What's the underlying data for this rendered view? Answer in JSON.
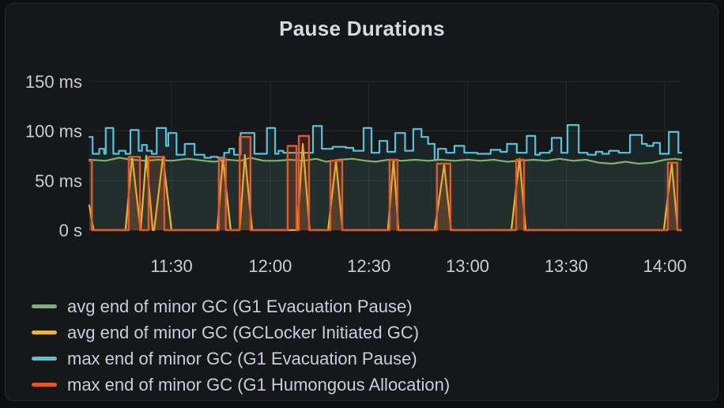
{
  "panel": {
    "title": "Pause Durations"
  },
  "colors": {
    "outer_bg": "#0D0E10",
    "panel_bg": "#161719",
    "panel_border": "#26282E",
    "grid": "#25272C",
    "axis_text": "#CBCCD6",
    "title_text": "#D9DAE3",
    "legend_text": "#CCCCDC"
  },
  "chart_data": {
    "type": "line",
    "title": "Pause Durations",
    "grid": true,
    "legend_position": "bottom-left",
    "time_unit": "minutes_since_midnight",
    "x_axis": {
      "t0": 665,
      "t1": 845,
      "ticks": [
        {
          "t": 690,
          "label": "11:30"
        },
        {
          "t": 720,
          "label": "12:00"
        },
        {
          "t": 750,
          "label": "12:30"
        },
        {
          "t": 780,
          "label": "13:00"
        },
        {
          "t": 810,
          "label": "13:30"
        },
        {
          "t": 840,
          "label": "14:00"
        }
      ]
    },
    "y_axis": {
      "unit": "ms",
      "ylim": [
        0,
        150
      ],
      "ticks": [
        {
          "v": 0,
          "label": "0 s"
        },
        {
          "v": 50,
          "label": "50 ms"
        },
        {
          "v": 100,
          "label": "100 ms"
        },
        {
          "v": 150,
          "label": "150 ms"
        }
      ]
    },
    "draw_order": [
      2,
      0,
      1,
      3
    ],
    "series": [
      {
        "name": "avg end of minor GC (G1 Evacuation Pause)",
        "color": "#7EB26D",
        "mode": "line",
        "width": 2.2,
        "fill_opacity": 0.09,
        "points": [
          [
            665,
            71
          ],
          [
            670,
            70
          ],
          [
            674,
            73
          ],
          [
            678,
            71
          ],
          [
            682,
            70
          ],
          [
            686,
            71
          ],
          [
            690,
            70
          ],
          [
            695,
            72
          ],
          [
            700,
            70
          ],
          [
            703,
            69
          ],
          [
            707,
            71
          ],
          [
            711,
            70
          ],
          [
            714,
            73
          ],
          [
            718,
            70
          ],
          [
            722,
            70
          ],
          [
            726,
            71
          ],
          [
            730,
            70
          ],
          [
            734,
            72
          ],
          [
            737,
            69
          ],
          [
            741,
            71
          ],
          [
            745,
            72
          ],
          [
            749,
            70
          ],
          [
            752,
            69
          ],
          [
            756,
            71
          ],
          [
            760,
            70
          ],
          [
            764,
            71
          ],
          [
            768,
            70
          ],
          [
            772,
            71
          ],
          [
            776,
            70
          ],
          [
            780,
            71
          ],
          [
            784,
            70
          ],
          [
            788,
            71
          ],
          [
            792,
            69
          ],
          [
            796,
            70
          ],
          [
            800,
            71
          ],
          [
            804,
            70
          ],
          [
            808,
            72
          ],
          [
            812,
            70
          ],
          [
            816,
            71
          ],
          [
            820,
            68
          ],
          [
            824,
            67
          ],
          [
            828,
            69
          ],
          [
            832,
            67
          ],
          [
            836,
            68
          ],
          [
            840,
            71
          ],
          [
            843,
            72
          ],
          [
            845,
            71
          ]
        ]
      },
      {
        "name": "avg end of minor GC (GCLocker Initiated GC)",
        "color": "#EAB839",
        "mode": "line",
        "width": 2.2,
        "fill_opacity": 0.1,
        "points": [
          [
            665,
            25
          ],
          [
            666.3,
            0
          ],
          [
            676,
            0
          ],
          [
            678,
            74
          ],
          [
            680.6,
            0
          ],
          [
            682.3,
            75
          ],
          [
            684.3,
            0
          ],
          [
            684.7,
            0
          ],
          [
            687.4,
            74
          ],
          [
            690,
            0
          ],
          [
            703.9,
            0
          ],
          [
            705.6,
            72
          ],
          [
            708,
            0
          ],
          [
            710.7,
            0
          ],
          [
            712.3,
            76
          ],
          [
            714.5,
            0
          ],
          [
            728.2,
            0
          ],
          [
            729.9,
            87
          ],
          [
            732,
            0
          ],
          [
            737.6,
            0
          ],
          [
            740,
            70
          ],
          [
            742,
            0
          ],
          [
            755.8,
            0
          ],
          [
            757.5,
            71
          ],
          [
            759,
            0
          ],
          [
            770,
            0
          ],
          [
            772.9,
            66
          ],
          [
            775,
            0
          ],
          [
            793.3,
            0
          ],
          [
            795.8,
            72
          ],
          [
            797.7,
            0
          ],
          [
            839.7,
            0
          ],
          [
            842.1,
            67
          ],
          [
            843.9,
            0
          ],
          [
            845,
            0
          ]
        ]
      },
      {
        "name": "max end of minor GC (G1 Evacuation Pause)",
        "color": "#58C2DA",
        "mode": "step",
        "width": 2.2,
        "fill_opacity": 0.07,
        "points": [
          [
            665,
            94
          ],
          [
            666,
            77
          ],
          [
            668,
            82
          ],
          [
            669.5,
            77
          ],
          [
            670,
            103
          ],
          [
            672.3,
            77
          ],
          [
            674,
            80
          ],
          [
            676,
            77
          ],
          [
            677.5,
            101
          ],
          [
            680,
            80
          ],
          [
            681,
            86
          ],
          [
            682.5,
            80
          ],
          [
            684,
            77
          ],
          [
            685.5,
            103
          ],
          [
            688.3,
            85
          ],
          [
            689,
            98
          ],
          [
            691.5,
            76
          ],
          [
            694,
            87
          ],
          [
            697,
            76
          ],
          [
            700,
            73
          ],
          [
            702,
            74
          ],
          [
            704,
            73
          ],
          [
            706,
            78
          ],
          [
            707.5,
            82
          ],
          [
            709,
            76
          ],
          [
            711,
            98
          ],
          [
            715.2,
            77
          ],
          [
            719,
            103
          ],
          [
            721.5,
            77
          ],
          [
            722.5,
            80
          ],
          [
            724,
            78
          ],
          [
            733,
            105
          ],
          [
            735.7,
            82
          ],
          [
            739,
            84
          ],
          [
            743,
            83
          ],
          [
            745.3,
            80
          ],
          [
            748.4,
            103
          ],
          [
            750.8,
            78
          ],
          [
            753.2,
            90
          ],
          [
            755.6,
            79
          ],
          [
            758,
            98
          ],
          [
            761,
            80
          ],
          [
            763.5,
            102
          ],
          [
            766,
            94
          ],
          [
            768,
            87
          ],
          [
            770,
            71
          ],
          [
            771,
            82
          ],
          [
            773.5,
            78
          ],
          [
            776,
            85
          ],
          [
            779,
            78
          ],
          [
            783,
            77
          ],
          [
            787,
            81
          ],
          [
            790,
            79
          ],
          [
            792,
            87
          ],
          [
            795,
            78
          ],
          [
            798,
            95
          ],
          [
            800.6,
            76
          ],
          [
            802,
            78
          ],
          [
            805,
            80
          ],
          [
            805.6,
            93
          ],
          [
            808.5,
            78
          ],
          [
            810.4,
            106
          ],
          [
            813.8,
            78
          ],
          [
            816.5,
            76
          ],
          [
            819,
            79
          ],
          [
            821,
            77
          ],
          [
            823,
            80
          ],
          [
            826,
            78
          ],
          [
            829.4,
            96
          ],
          [
            833,
            87
          ],
          [
            834.5,
            85
          ],
          [
            836.5,
            88
          ],
          [
            838.5,
            77
          ],
          [
            841.2,
            99
          ],
          [
            844.1,
            78
          ]
        ]
      },
      {
        "name": "max end of minor GC (G1 Humongous Allocation)",
        "color": "#E2572C",
        "mode": "step",
        "width": 2.4,
        "fill_opacity": 0.16,
        "points": [
          [
            665,
            70
          ],
          [
            665.8,
            0
          ],
          [
            677,
            74
          ],
          [
            680.4,
            0
          ],
          [
            683,
            74
          ],
          [
            687.8,
            0
          ],
          [
            704.4,
            72
          ],
          [
            706.5,
            0
          ],
          [
            710.7,
            94
          ],
          [
            714,
            0
          ],
          [
            725.3,
            85
          ],
          [
            728,
            0
          ],
          [
            728.7,
            95
          ],
          [
            731.8,
            0
          ],
          [
            738.3,
            70
          ],
          [
            741.9,
            0
          ],
          [
            756.3,
            71
          ],
          [
            758.7,
            0
          ],
          [
            770.7,
            67
          ],
          [
            774.8,
            0
          ],
          [
            794.8,
            71
          ],
          [
            797.2,
            0
          ],
          [
            840.9,
            68
          ],
          [
            843.8,
            0
          ]
        ]
      }
    ]
  }
}
